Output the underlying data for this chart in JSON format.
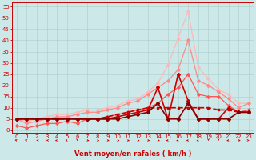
{
  "xlabel": "Vent moyen/en rafales ( km/h )",
  "xlim_left": -0.5,
  "xlim_right": 23.5,
  "ylim_bottom": -1,
  "ylim_top": 57,
  "yticks": [
    0,
    5,
    10,
    15,
    20,
    25,
    30,
    35,
    40,
    45,
    50,
    55
  ],
  "xticks": [
    0,
    1,
    2,
    3,
    4,
    5,
    6,
    7,
    8,
    9,
    10,
    11,
    12,
    13,
    14,
    15,
    16,
    17,
    18,
    19,
    20,
    21,
    22,
    23
  ],
  "background_color": "#cce8e8",
  "grid_color": "#aacccc",
  "series": [
    {
      "x": [
        0,
        1,
        2,
        3,
        4,
        5,
        6,
        7,
        8,
        9,
        10,
        11,
        12,
        13,
        14,
        15,
        16,
        17,
        18,
        19,
        20,
        21,
        22,
        23
      ],
      "y": [
        5,
        4,
        5,
        6,
        7,
        7,
        8,
        9,
        9,
        10,
        11,
        13,
        14,
        17,
        21,
        29,
        41,
        53,
        28,
        23,
        18,
        16,
        12,
        12
      ],
      "color": "#ffb8b8",
      "lw": 0.9,
      "marker": "D",
      "ms": 1.8,
      "ls": "-"
    },
    {
      "x": [
        0,
        1,
        2,
        3,
        4,
        5,
        6,
        7,
        8,
        9,
        10,
        11,
        12,
        13,
        14,
        15,
        16,
        17,
        18,
        19,
        20,
        21,
        22,
        23
      ],
      "y": [
        5,
        3,
        4,
        5,
        6,
        6,
        7,
        8,
        8,
        9,
        10,
        12,
        13,
        16,
        19,
        22,
        27,
        40,
        22,
        20,
        17,
        14,
        10,
        12
      ],
      "color": "#ff8888",
      "lw": 0.9,
      "marker": "D",
      "ms": 1.8,
      "ls": "-"
    },
    {
      "x": [
        0,
        1,
        2,
        3,
        4,
        5,
        6,
        7,
        8,
        9,
        10,
        11,
        12,
        13,
        14,
        15,
        16,
        17,
        18,
        19,
        20,
        21,
        22,
        23
      ],
      "y": [
        2,
        1,
        2,
        3,
        3,
        4,
        3,
        5,
        5,
        6,
        7,
        8,
        9,
        10,
        12,
        16,
        19,
        25,
        16,
        15,
        15,
        11,
        8,
        9
      ],
      "color": "#ff5555",
      "lw": 0.9,
      "marker": "D",
      "ms": 1.8,
      "ls": "-"
    },
    {
      "x": [
        0,
        1,
        2,
        3,
        4,
        5,
        6,
        7,
        8,
        9,
        10,
        11,
        12,
        13,
        14,
        15,
        16,
        17,
        18,
        19,
        20,
        21,
        22,
        23
      ],
      "y": [
        5,
        5,
        5,
        5,
        5,
        5,
        5,
        5,
        5,
        5,
        6,
        7,
        8,
        9,
        19,
        5,
        25,
        13,
        5,
        5,
        5,
        10,
        8,
        8
      ],
      "color": "#cc0000",
      "lw": 1.2,
      "marker": "D",
      "ms": 2.0,
      "ls": "-"
    },
    {
      "x": [
        0,
        1,
        2,
        3,
        4,
        5,
        6,
        7,
        8,
        9,
        10,
        11,
        12,
        13,
        14,
        15,
        16,
        17,
        18,
        19,
        20,
        21,
        22,
        23
      ],
      "y": [
        5,
        5,
        5,
        5,
        5,
        5,
        5,
        5,
        5,
        6,
        7,
        8,
        9,
        10,
        10,
        10,
        10,
        10,
        10,
        10,
        9,
        9,
        8,
        8
      ],
      "color": "#cc0000",
      "lw": 1.2,
      "marker": "s",
      "ms": 2.0,
      "ls": "--"
    },
    {
      "x": [
        0,
        1,
        2,
        3,
        4,
        5,
        6,
        7,
        8,
        9,
        10,
        11,
        12,
        13,
        14,
        15,
        16,
        17,
        18,
        19,
        20,
        21,
        22,
        23
      ],
      "y": [
        5,
        5,
        5,
        5,
        5,
        5,
        5,
        5,
        5,
        5,
        5,
        6,
        7,
        8,
        12,
        5,
        5,
        12,
        5,
        5,
        5,
        5,
        8,
        8
      ],
      "color": "#880000",
      "lw": 1.2,
      "marker": "D",
      "ms": 2.0,
      "ls": "-"
    }
  ],
  "arrow_color": "#cc0000",
  "tick_fontsize": 5,
  "xlabel_fontsize": 6,
  "xlabel_color": "#cc0000",
  "xtick_color": "#cc0000",
  "ytick_color": "#cc0000",
  "arrow_angles": [
    225,
    225,
    270,
    270,
    315,
    315,
    0,
    45,
    45,
    45,
    45,
    45,
    45,
    45,
    45,
    315,
    315,
    315,
    315,
    0,
    0,
    315,
    45,
    90
  ]
}
